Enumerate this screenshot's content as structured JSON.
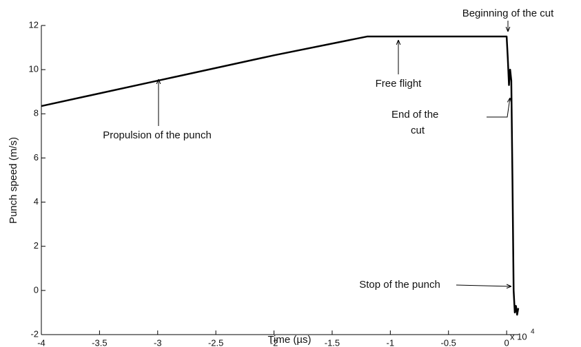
{
  "chart_data": {
    "type": "line",
    "x_label": "Time (µs)",
    "y_label": "Punch speed (m/s)",
    "x_multiplier": "x 10",
    "x_multiplier_exponent": "4",
    "color": "#000000",
    "x": [
      -4,
      -3,
      -2,
      -1.2,
      -0.5,
      0,
      0.01,
      0.02,
      0.03,
      0.04,
      0.05,
      0.06,
      0.07,
      0.08,
      0.09,
      0.1
    ],
    "values": [
      8.35,
      9.5,
      10.65,
      11.5,
      11.5,
      11.5,
      10.5,
      9.3,
      10,
      9.5,
      5,
      0,
      -1,
      -0.7,
      -1.1,
      -0.8
    ],
    "xlim": [
      -4,
      0.1
    ],
    "ylim": [
      -2,
      12
    ],
    "xticks": [
      -4,
      -3.5,
      -3,
      -2.5,
      -2,
      -1.5,
      -1,
      -0.5,
      0
    ],
    "yticks": [
      -2,
      0,
      2,
      4,
      6,
      8,
      10,
      12
    ],
    "annotations": [
      "Beginning of the cut",
      "Free flight",
      "End of the",
      "cut",
      "Propulsion of the punch",
      "Stop of the punch"
    ]
  }
}
